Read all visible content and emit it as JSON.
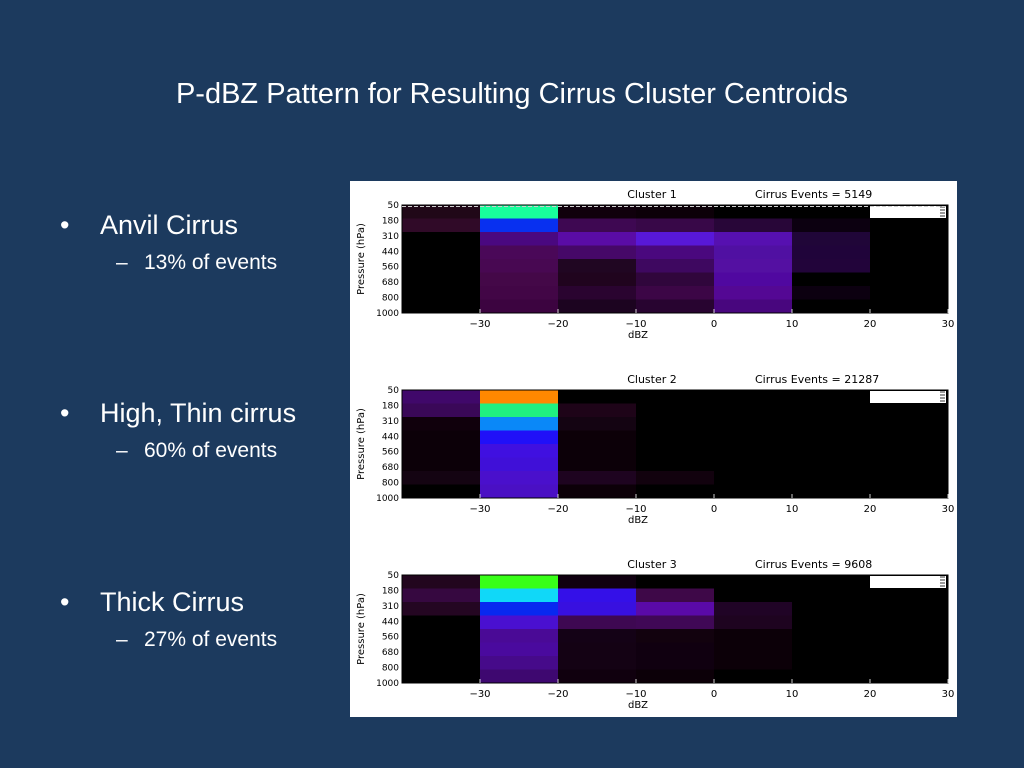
{
  "slide": {
    "title": "P-dBZ Pattern for Resulting Cirrus Cluster Centroids",
    "bullets": [
      {
        "label": "Anvil Cirrus",
        "sub": "13% of events"
      },
      {
        "label": "High, Thin cirrus",
        "sub": "60% of events"
      },
      {
        "label": "Thick Cirrus",
        "sub": "27%  of events"
      }
    ]
  },
  "chart_data": [
    {
      "type": "heatmap",
      "title": "Cluster 1",
      "annotation": "Cirrus Events =  5149",
      "xlabel": "dBZ",
      "ylabel": "Pressure (hPa)",
      "xlim": [
        -40,
        30
      ],
      "xticks": [
        "-30",
        "-20",
        "-10",
        "0",
        "10",
        "20",
        "30"
      ],
      "yticks": [
        "50",
        "180",
        "310",
        "440",
        "560",
        "680",
        "800",
        "1000"
      ],
      "x_edges": [
        -40,
        -30,
        -20,
        -10,
        0,
        10,
        20,
        30
      ],
      "rows": [
        [
          "#200818",
          "#18ff9c",
          "#10000c",
          "#0c0008",
          "#000000",
          "#000000",
          "#000000"
        ],
        [
          "#300a28",
          "#0830f0",
          "#3e0852",
          "#380848",
          "#280638",
          "#0c0010",
          "#000000"
        ],
        [
          "#000000",
          "#4a0880",
          "#5a0ca6",
          "#5818d8",
          "#5610b0",
          "#200638",
          "#000000"
        ],
        [
          "#000000",
          "#4a0858",
          "#460868",
          "#4a087e",
          "#5010a2",
          "#20043a",
          "#000000"
        ],
        [
          "#000000",
          "#480852",
          "#200622",
          "#3e0860",
          "#5410a2",
          "#22043a",
          "#000000"
        ],
        [
          "#000000",
          "#440848",
          "#20041e",
          "#30063c",
          "#5008a0",
          "#000000",
          "#000000"
        ],
        [
          "#000000",
          "#420646",
          "#2a0430",
          "#3c0646",
          "#540894",
          "#0c0010",
          "#000000"
        ],
        [
          "#000000",
          "#3c0440",
          "#1c0420",
          "#280430",
          "#48067e",
          "#000000",
          "#000000"
        ]
      ],
      "colorbar_swatch": "#ffffff"
    },
    {
      "type": "heatmap",
      "title": "Cluster 2",
      "annotation": "Cirrus Events = 21287",
      "xlabel": "dBZ",
      "ylabel": "Pressure (hPa)",
      "xlim": [
        -40,
        30
      ],
      "xticks": [
        "-30",
        "-20",
        "-10",
        "0",
        "10",
        "20",
        "30"
      ],
      "yticks": [
        "50",
        "180",
        "310",
        "440",
        "560",
        "680",
        "800",
        "1000"
      ],
      "x_edges": [
        -40,
        -30,
        -20,
        -10,
        0,
        10,
        20,
        30
      ],
      "rows": [
        [
          "#40086a",
          "#ff8800",
          "#000000",
          "#000000",
          "#000000",
          "#000000",
          "#000000"
        ],
        [
          "#3a0858",
          "#20f080",
          "#1e0418",
          "#000000",
          "#000000",
          "#000000",
          "#000000"
        ],
        [
          "#10000c",
          "#0a88f8",
          "#140412",
          "#000000",
          "#000000",
          "#000000",
          "#000000"
        ],
        [
          "#0c0008",
          "#2010f8",
          "#0c0008",
          "#000000",
          "#000000",
          "#000000",
          "#000000"
        ],
        [
          "#0c0008",
          "#4010e0",
          "#0c0008",
          "#000000",
          "#000000",
          "#000000",
          "#000000"
        ],
        [
          "#0c0008",
          "#4010d8",
          "#0c0008",
          "#000000",
          "#000000",
          "#000000",
          "#000000"
        ],
        [
          "#140412",
          "#4a10cc",
          "#1e0420",
          "#12020e",
          "#000000",
          "#000000",
          "#000000"
        ],
        [
          "#000000",
          "#4a10c4",
          "#0c0008",
          "#000000",
          "#000000",
          "#000000",
          "#000000"
        ]
      ],
      "colorbar_swatch": "#ffffff"
    },
    {
      "type": "heatmap",
      "title": "Cluster 3",
      "annotation": "Cirrus Events =  9608",
      "xlabel": "dBZ",
      "ylabel": "Pressure (hPa)",
      "xlim": [
        -40,
        30
      ],
      "xticks": [
        "-30",
        "-20",
        "-10",
        "0",
        "10",
        "20",
        "30"
      ],
      "yticks": [
        "50",
        "180",
        "310",
        "440",
        "560",
        "680",
        "800",
        "1000"
      ],
      "x_edges": [
        -40,
        -30,
        -20,
        -10,
        0,
        10,
        20,
        30
      ],
      "rows": [
        [
          "#22061e",
          "#38ff18",
          "#100010",
          "#000000",
          "#000000",
          "#000000",
          "#000000"
        ],
        [
          "#360840",
          "#10d8f8",
          "#3410e8",
          "#3e0848",
          "#000000",
          "#000000",
          "#000000"
        ],
        [
          "#240622",
          "#0828f0",
          "#3810e0",
          "#5a0aa8",
          "#200426",
          "#000000",
          "#000000"
        ],
        [
          "#000000",
          "#4a10d0",
          "#3e0852",
          "#400856",
          "#1e0420",
          "#000000",
          "#000000"
        ],
        [
          "#000000",
          "#4a0a96",
          "#140216",
          "#12020e",
          "#0c0008",
          "#000000",
          "#000000"
        ],
        [
          "#000000",
          "#4a0a9e",
          "#140214",
          "#100010",
          "#0c0008",
          "#000000",
          "#000000"
        ],
        [
          "#000000",
          "#460a8a",
          "#140214",
          "#100010",
          "#0c0008",
          "#000000",
          "#000000"
        ],
        [
          "#000000",
          "#3e0870",
          "#10000e",
          "#0c0008",
          "#000000",
          "#000000",
          "#000000"
        ]
      ],
      "colorbar_swatch": "#ffffff"
    }
  ],
  "colors": {
    "slide_background": "#1c3a5e",
    "text": "#ffffff",
    "figure_background": "#ffffff"
  }
}
